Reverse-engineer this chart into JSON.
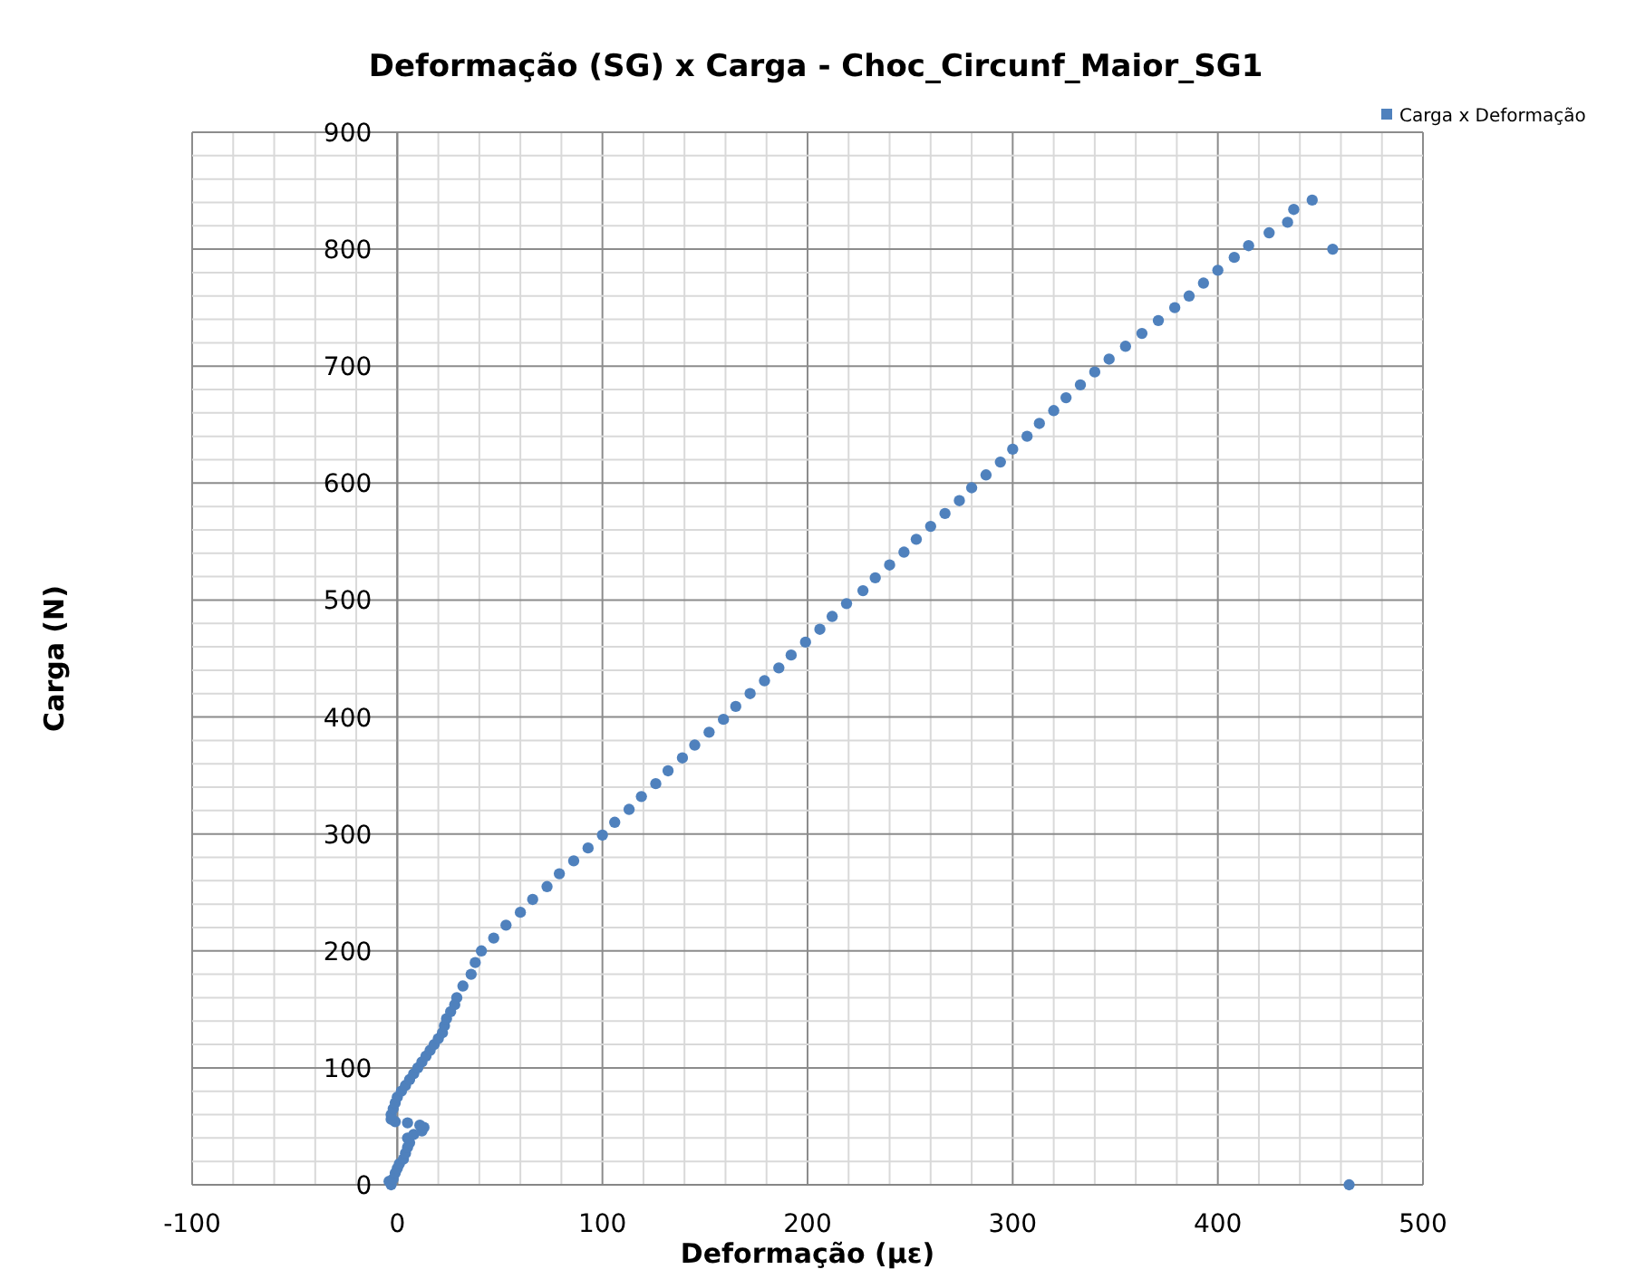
{
  "chart_data": {
    "type": "scatter",
    "title": "Deformação (SG) x Carga - Choc_Circunf_Maior_SG1",
    "xlabel": "Deformação (µε)",
    "ylabel": "Carga (N)",
    "xlim": [
      -100,
      500
    ],
    "ylim": [
      0,
      900
    ],
    "xticks": [
      -100,
      {
        "value": -80,
        "label": null
      },
      {
        "value": -60,
        "label": null
      },
      {
        "value": -40,
        "label": null
      },
      {
        "value": -20,
        "label": null
      },
      0,
      {
        "value": 20,
        "label": null
      },
      {
        "value": 40,
        "label": null
      },
      {
        "value": 60,
        "label": null
      },
      {
        "value": 80,
        "label": null
      },
      100,
      {
        "value": 120,
        "label": null
      },
      {
        "value": 140,
        "label": null
      },
      {
        "value": 160,
        "label": null
      },
      {
        "value": 180,
        "label": null
      },
      200,
      {
        "value": 220,
        "label": null
      },
      {
        "value": 240,
        "label": null
      },
      {
        "value": 260,
        "label": null
      },
      {
        "value": 280,
        "label": null
      },
      300,
      {
        "value": 320,
        "label": null
      },
      {
        "value": 340,
        "label": null
      },
      {
        "value": 360,
        "label": null
      },
      {
        "value": 380,
        "label": null
      },
      400,
      {
        "value": 420,
        "label": null
      },
      {
        "value": 440,
        "label": null
      },
      {
        "value": 460,
        "label": null
      },
      {
        "value": 480,
        "label": null
      },
      500
    ],
    "yticks": [
      0,
      {
        "value": 20,
        "label": null
      },
      {
        "value": 40,
        "label": null
      },
      {
        "value": 60,
        "label": null
      },
      {
        "value": 80,
        "label": null
      },
      100,
      {
        "value": 120,
        "label": null
      },
      {
        "value": 140,
        "label": null
      },
      {
        "value": 160,
        "label": null
      },
      {
        "value": 180,
        "label": null
      },
      200,
      {
        "value": 220,
        "label": null
      },
      {
        "value": 240,
        "label": null
      },
      {
        "value": 260,
        "label": null
      },
      {
        "value": 280,
        "label": null
      },
      300,
      {
        "value": 320,
        "label": null
      },
      {
        "value": 340,
        "label": null
      },
      {
        "value": 360,
        "label": null
      },
      {
        "value": 380,
        "label": null
      },
      400,
      {
        "value": 420,
        "label": null
      },
      {
        "value": 440,
        "label": null
      },
      {
        "value": 460,
        "label": null
      },
      {
        "value": 480,
        "label": null
      },
      500,
      {
        "value": 520,
        "label": null
      },
      {
        "value": 540,
        "label": null
      },
      {
        "value": 560,
        "label": null
      },
      {
        "value": 580,
        "label": null
      },
      600,
      {
        "value": 620,
        "label": null
      },
      {
        "value": 640,
        "label": null
      },
      {
        "value": 660,
        "label": null
      },
      {
        "value": 680,
        "label": null
      },
      700,
      {
        "value": 720,
        "label": null
      },
      {
        "value": 740,
        "label": null
      },
      {
        "value": 760,
        "label": null
      },
      {
        "value": 780,
        "label": null
      },
      800,
      {
        "value": 820,
        "label": null
      },
      {
        "value": 840,
        "label": null
      },
      {
        "value": 860,
        "label": null
      },
      {
        "value": 880,
        "label": null
      },
      900
    ],
    "grid": true,
    "legend": "top right",
    "marker": "circle",
    "series": [
      {
        "name": "Carga x Deformação",
        "color": "#4f81bd",
        "x": [
          -3,
          -4,
          -2,
          -1,
          0,
          1,
          3,
          4,
          5,
          6,
          5,
          8,
          12,
          13,
          11,
          5,
          -1,
          -3,
          -3,
          -2,
          -1,
          0,
          2,
          4,
          6,
          8,
          10,
          12,
          14,
          16,
          18,
          20,
          22,
          23,
          24,
          26,
          28,
          29,
          32,
          36,
          38,
          41,
          47,
          53,
          60,
          66,
          73,
          79,
          86,
          93,
          100,
          106,
          113,
          119,
          126,
          132,
          139,
          145,
          152,
          159,
          165,
          172,
          179,
          186,
          192,
          199,
          206,
          212,
          219,
          227,
          233,
          240,
          247,
          253,
          260,
          267,
          274,
          280,
          287,
          294,
          300,
          307,
          313,
          320,
          326,
          333,
          340,
          347,
          355,
          363,
          371,
          379,
          386,
          393,
          400,
          408,
          415,
          425,
          434,
          437,
          446,
          456,
          464
        ],
        "values": [
          0,
          3,
          5,
          10,
          14,
          18,
          22,
          27,
          32,
          36,
          40,
          43,
          46,
          49,
          51,
          53,
          54,
          56,
          60,
          65,
          70,
          75,
          80,
          85,
          90,
          95,
          100,
          105,
          110,
          115,
          120,
          125,
          130,
          136,
          142,
          148,
          154,
          160,
          170,
          180,
          190,
          200,
          211,
          222,
          233,
          244,
          255,
          266,
          277,
          288,
          299,
          310,
          321,
          332,
          343,
          354,
          365,
          376,
          387,
          398,
          409,
          420,
          431,
          442,
          453,
          464,
          475,
          486,
          497,
          508,
          519,
          530,
          541,
          552,
          563,
          574,
          585,
          596,
          607,
          618,
          629,
          640,
          651,
          662,
          673,
          684,
          695,
          706,
          717,
          728,
          739,
          750,
          760,
          771,
          782,
          793,
          803,
          814,
          823,
          834,
          842,
          800,
          0
        ]
      }
    ]
  }
}
